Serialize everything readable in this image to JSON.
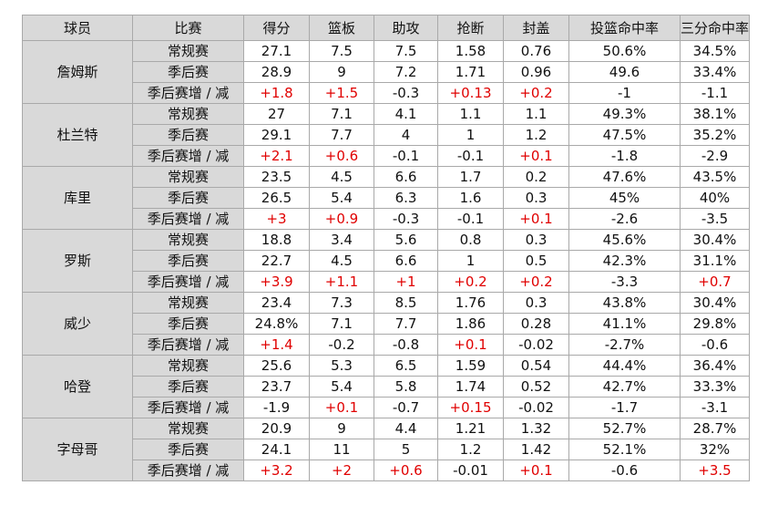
{
  "colors": {
    "positive": "#e00000",
    "header_bg": "#d9d9d9",
    "border": "#a9a9a9"
  },
  "headers": [
    "球员",
    "比赛",
    "得分",
    "篮板",
    "助攻",
    "抢断",
    "封盖",
    "投篮命中率",
    "三分命中率"
  ],
  "players": [
    {
      "name": "詹姆斯",
      "rows": [
        {
          "label": "常规赛",
          "values": [
            "27.1",
            "7.5",
            "7.5",
            "1.58",
            "0.76",
            "50.6%",
            "34.5%"
          ]
        },
        {
          "label": "季后赛",
          "values": [
            "28.9",
            "9",
            "7.2",
            "1.71",
            "0.96",
            "49.6",
            "33.4%"
          ]
        },
        {
          "label": "季后赛增 / 减",
          "values": [
            "+1.8",
            "+1.5",
            "-0.3",
            "+0.13",
            "+0.2",
            "-1",
            "-1.1"
          ]
        }
      ]
    },
    {
      "name": "杜兰特",
      "rows": [
        {
          "label": "常规赛",
          "values": [
            "27",
            "7.1",
            "4.1",
            "1.1",
            "1.1",
            "49.3%",
            "38.1%"
          ]
        },
        {
          "label": "季后赛",
          "values": [
            "29.1",
            "7.7",
            "4",
            "1",
            "1.2",
            "47.5%",
            "35.2%"
          ]
        },
        {
          "label": "季后赛增 / 减",
          "values": [
            "+2.1",
            "+0.6",
            "-0.1",
            "-0.1",
            "+0.1",
            "-1.8",
            "-2.9"
          ]
        }
      ]
    },
    {
      "name": "库里",
      "rows": [
        {
          "label": "常规赛",
          "values": [
            "23.5",
            "4.5",
            "6.6",
            "1.7",
            "0.2",
            "47.6%",
            "43.5%"
          ]
        },
        {
          "label": "季后赛",
          "values": [
            "26.5",
            "5.4",
            "6.3",
            "1.6",
            "0.3",
            "45%",
            "40%"
          ]
        },
        {
          "label": "季后赛增 / 减",
          "values": [
            "+3",
            "+0.9",
            "-0.3",
            "-0.1",
            "+0.1",
            "-2.6",
            "-3.5"
          ]
        }
      ]
    },
    {
      "name": "罗斯",
      "rows": [
        {
          "label": "常规赛",
          "values": [
            "18.8",
            "3.4",
            "5.6",
            "0.8",
            "0.3",
            "45.6%",
            "30.4%"
          ]
        },
        {
          "label": "季后赛",
          "values": [
            "22.7",
            "4.5",
            "6.6",
            "1",
            "0.5",
            "42.3%",
            "31.1%"
          ]
        },
        {
          "label": "季后赛增 / 减",
          "values": [
            "+3.9",
            "+1.1",
            "+1",
            "+0.2",
            "+0.2",
            "-3.3",
            "+0.7"
          ]
        }
      ]
    },
    {
      "name": "威少",
      "rows": [
        {
          "label": "常规赛",
          "values": [
            "23.4",
            "7.3",
            "8.5",
            "1.76",
            "0.3",
            "43.8%",
            "30.4%"
          ]
        },
        {
          "label": "季后赛",
          "values": [
            "24.8%",
            "7.1",
            "7.7",
            "1.86",
            "0.28",
            "41.1%",
            "29.8%"
          ]
        },
        {
          "label": "季后赛增 / 减",
          "values": [
            "+1.4",
            "-0.2",
            "-0.8",
            "+0.1",
            "-0.02",
            "-2.7%",
            "-0.6"
          ]
        }
      ]
    },
    {
      "name": "哈登",
      "rows": [
        {
          "label": "常规赛",
          "values": [
            "25.6",
            "5.3",
            "6.5",
            "1.59",
            "0.54",
            "44.4%",
            "36.4%"
          ]
        },
        {
          "label": "季后赛",
          "values": [
            "23.7",
            "5.4",
            "5.8",
            "1.74",
            "0.52",
            "42.7%",
            "33.3%"
          ]
        },
        {
          "label": "季后赛增 / 减",
          "values": [
            "-1.9",
            "+0.1",
            "-0.7",
            "+0.15",
            "-0.02",
            "-1.7",
            "-3.1"
          ]
        }
      ]
    },
    {
      "name": "字母哥",
      "rows": [
        {
          "label": "常规赛",
          "values": [
            "20.9",
            "9",
            "4.4",
            "1.21",
            "1.32",
            "52.7%",
            "28.7%"
          ]
        },
        {
          "label": "季后赛",
          "values": [
            "24.1",
            "11",
            "5",
            "1.2",
            "1.42",
            "52.1%",
            "32%"
          ]
        },
        {
          "label": "季后赛增 / 减",
          "values": [
            "+3.2",
            "+2",
            "+0.6",
            "-0.01",
            "+0.1",
            "-0.6",
            "+3.5"
          ]
        }
      ]
    }
  ]
}
